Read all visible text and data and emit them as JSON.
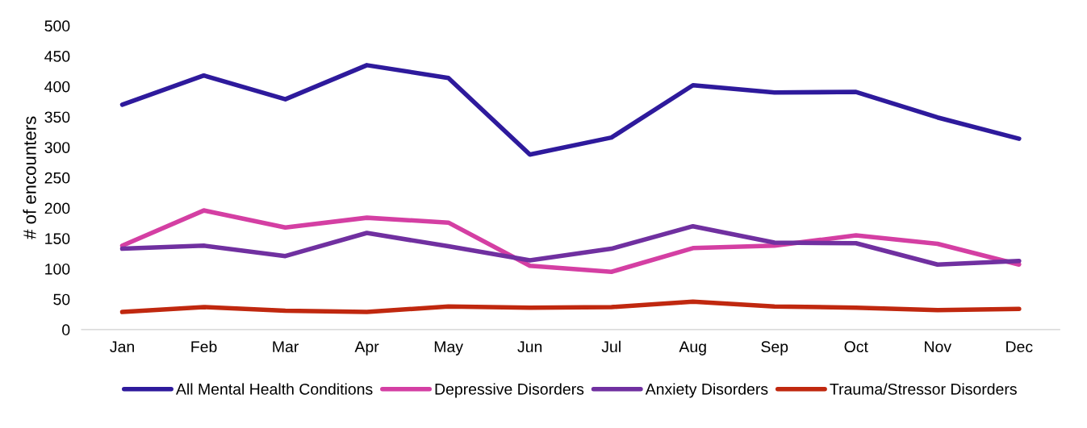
{
  "chart_data": {
    "type": "line",
    "ylabel": "# of encounters",
    "categories": [
      "Jan",
      "Feb",
      "Mar",
      "Apr",
      "May",
      "Jun",
      "Jul",
      "Aug",
      "Sep",
      "Oct",
      "Nov",
      "Dec"
    ],
    "series": [
      {
        "name": "All Mental Health Conditions",
        "color": "#2e1a9c",
        "values": [
          370,
          418,
          379,
          435,
          414,
          288,
          316,
          402,
          390,
          391,
          349,
          314
        ]
      },
      {
        "name": "Depressive Disorders",
        "color": "#d43fa3",
        "values": [
          138,
          196,
          168,
          184,
          176,
          105,
          95,
          134,
          138,
          155,
          141,
          107
        ]
      },
      {
        "name": "Anxiety Disorders",
        "color": "#7030a0",
        "values": [
          133,
          138,
          121,
          159,
          137,
          114,
          133,
          170,
          143,
          142,
          107,
          113
        ]
      },
      {
        "name": "Trauma/Stressor Disorders",
        "color": "#c0280f",
        "values": [
          29,
          37,
          31,
          29,
          38,
          36,
          37,
          46,
          38,
          36,
          32,
          34
        ]
      }
    ],
    "ylim": [
      0,
      500
    ],
    "yticks": [
      0,
      50,
      100,
      150,
      200,
      250,
      300,
      350,
      400,
      450,
      500
    ],
    "grid": false,
    "legend": "bottom",
    "marker": "none",
    "line_style": "solid"
  }
}
